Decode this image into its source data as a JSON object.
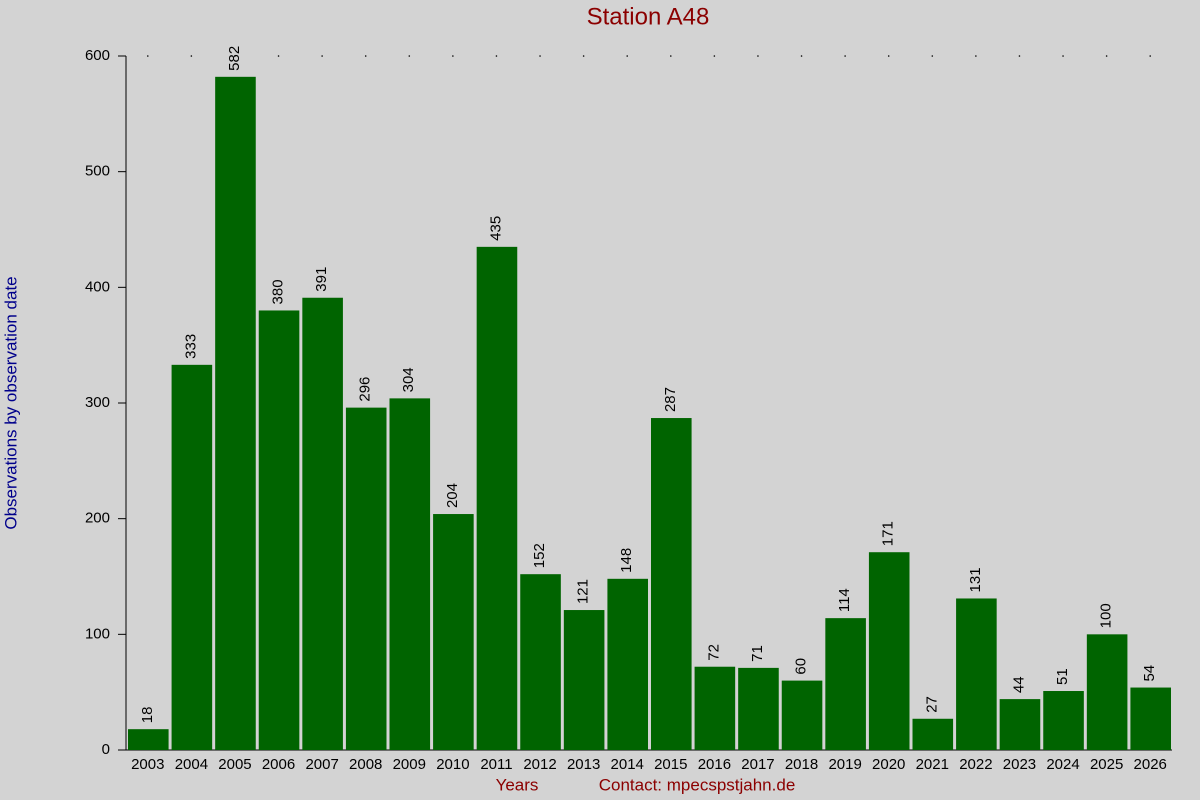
{
  "chart_data": {
    "type": "bar",
    "title": "Station A48",
    "x_label": "Years",
    "y_label": "Observations by observation date",
    "annotation": "Contact: mpecspstjahn.de",
    "categories": [
      "2003",
      "2004",
      "2005",
      "2006",
      "2007",
      "2008",
      "2009",
      "2010",
      "2011",
      "2012",
      "2013",
      "2014",
      "2015",
      "2016",
      "2017",
      "2018",
      "2019",
      "2020",
      "2021",
      "2022",
      "2023",
      "2024",
      "2025",
      "2026"
    ],
    "values": [
      18,
      333,
      582,
      380,
      391,
      296,
      304,
      204,
      435,
      152,
      121,
      148,
      287,
      72,
      71,
      60,
      114,
      171,
      27,
      131,
      44,
      51,
      100,
      54
    ],
    "color": "#006400",
    "ylim": [
      0,
      600
    ],
    "yticks": [
      0,
      100,
      200,
      300,
      400,
      500,
      600
    ],
    "grid": false
  }
}
